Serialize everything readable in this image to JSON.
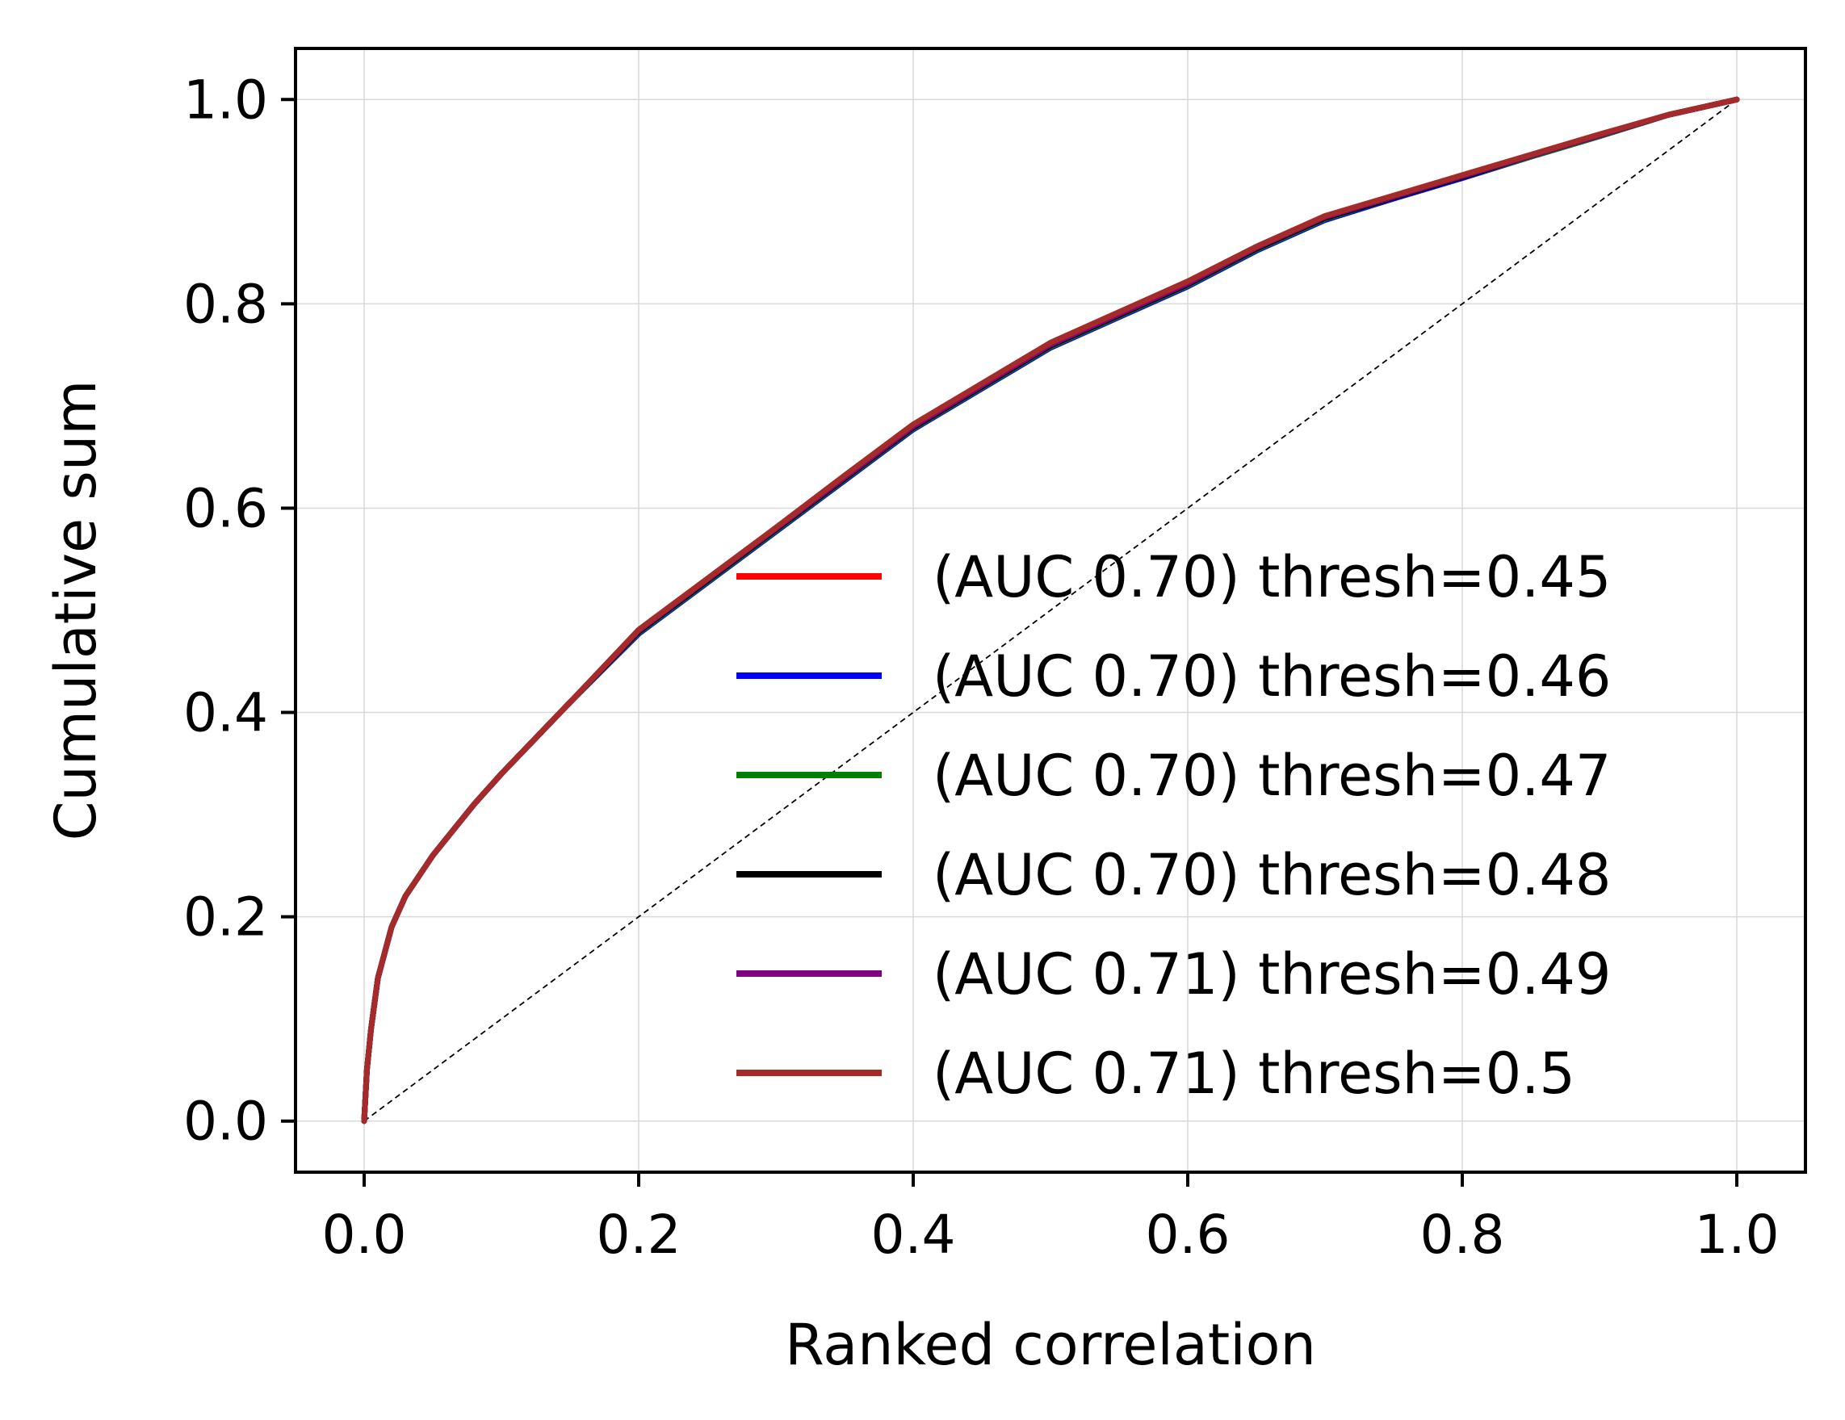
{
  "chart_data": {
    "type": "line",
    "xlabel": "Ranked correlation",
    "ylabel": "Cumulative sum",
    "xlim": [
      -0.05,
      1.05
    ],
    "ylim": [
      -0.05,
      1.05
    ],
    "xticks": [
      0.0,
      0.2,
      0.4,
      0.6,
      0.8,
      1.0
    ],
    "yticks": [
      0.0,
      0.2,
      0.4,
      0.6,
      0.8,
      1.0
    ],
    "xtick_labels": [
      "0.0",
      "0.2",
      "0.4",
      "0.6",
      "0.8",
      "1.0"
    ],
    "ytick_labels": [
      "0.0",
      "0.2",
      "0.4",
      "0.6",
      "0.8",
      "1.0"
    ],
    "grid": true,
    "legend_position": "lower-right",
    "x": [
      0,
      0.002,
      0.005,
      0.01,
      0.02,
      0.03,
      0.05,
      0.08,
      0.1,
      0.15,
      0.2,
      0.25,
      0.3,
      0.35,
      0.4,
      0.45,
      0.5,
      0.55,
      0.6,
      0.65,
      0.7,
      0.75,
      0.8,
      0.85,
      0.9,
      0.95,
      1.0
    ],
    "series": [
      {
        "name": "(AUC 0.70) thresh=0.45",
        "color": "#ff0000",
        "values": [
          0,
          0.05,
          0.09,
          0.14,
          0.19,
          0.22,
          0.26,
          0.31,
          0.34,
          0.41,
          0.48,
          0.53,
          0.58,
          0.63,
          0.68,
          0.72,
          0.76,
          0.79,
          0.82,
          0.855,
          0.885,
          0.905,
          0.925,
          0.945,
          0.965,
          0.985,
          1.0
        ]
      },
      {
        "name": "(AUC 0.70) thresh=0.46",
        "color": "#0000ff",
        "values": [
          0,
          0.05,
          0.09,
          0.14,
          0.19,
          0.22,
          0.26,
          0.31,
          0.34,
          0.41,
          0.477,
          0.527,
          0.577,
          0.627,
          0.677,
          0.717,
          0.757,
          0.787,
          0.817,
          0.852,
          0.882,
          0.903,
          0.923,
          0.944,
          0.964,
          0.985,
          1.0
        ]
      },
      {
        "name": "(AUC 0.70) thresh=0.47",
        "color": "#008000",
        "values": [
          0,
          0.05,
          0.09,
          0.14,
          0.19,
          0.22,
          0.26,
          0.31,
          0.34,
          0.41,
          0.478,
          0.528,
          0.578,
          0.628,
          0.678,
          0.718,
          0.758,
          0.788,
          0.818,
          0.853,
          0.883,
          0.904,
          0.924,
          0.944,
          0.964,
          0.985,
          1.0
        ]
      },
      {
        "name": "(AUC 0.70) thresh=0.48",
        "color": "#000000",
        "values": [
          0,
          0.05,
          0.09,
          0.14,
          0.19,
          0.22,
          0.26,
          0.31,
          0.34,
          0.41,
          0.479,
          0.529,
          0.579,
          0.629,
          0.679,
          0.719,
          0.759,
          0.789,
          0.819,
          0.854,
          0.884,
          0.904,
          0.924,
          0.945,
          0.965,
          0.985,
          1.0
        ]
      },
      {
        "name": "(AUC 0.71) thresh=0.49",
        "color": "#800080",
        "values": [
          0,
          0.05,
          0.09,
          0.14,
          0.19,
          0.22,
          0.26,
          0.31,
          0.34,
          0.41,
          0.48,
          0.53,
          0.58,
          0.63,
          0.68,
          0.72,
          0.76,
          0.79,
          0.82,
          0.855,
          0.885,
          0.905,
          0.925,
          0.945,
          0.965,
          0.985,
          1.0
        ]
      },
      {
        "name": "(AUC 0.71) thresh=0.5",
        "color": "#a52a2a",
        "values": [
          0,
          0.05,
          0.09,
          0.14,
          0.19,
          0.22,
          0.26,
          0.31,
          0.34,
          0.41,
          0.481,
          0.531,
          0.581,
          0.632,
          0.682,
          0.722,
          0.762,
          0.792,
          0.822,
          0.856,
          0.886,
          0.906,
          0.926,
          0.946,
          0.966,
          0.985,
          1.0
        ]
      }
    ],
    "reference_line": {
      "x": [
        0,
        1
      ],
      "y": [
        0,
        1
      ],
      "style": "dashed",
      "color": "#000000"
    }
  }
}
